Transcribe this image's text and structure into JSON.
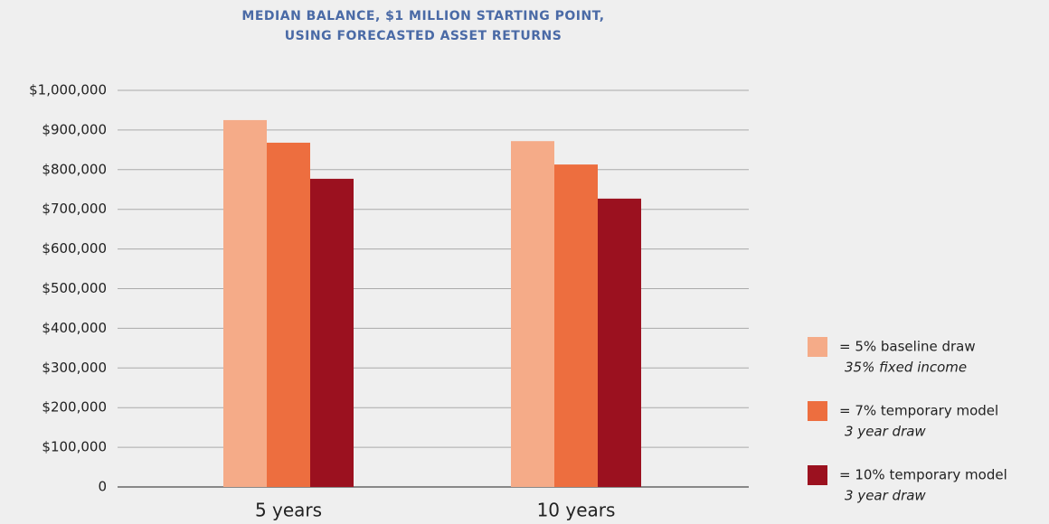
{
  "chart_data": {
    "type": "bar",
    "title": [
      "MEDIAN BALANCE, $1 MILLION STARTING POINT,",
      "USING FORECASTED ASSET RETURNS"
    ],
    "categories": [
      "5 years",
      "10 years"
    ],
    "series": [
      {
        "name": "= 5% baseline draw",
        "note": "35% fixed income",
        "color": "#f5ab88",
        "values": [
          925000,
          872000
        ]
      },
      {
        "name": "= 7% temporary model",
        "note": "3 year draw",
        "color": "#ed6e3f",
        "values": [
          868000,
          813000
        ]
      },
      {
        "name": "= 10% temporary model",
        "note": "3 year draw",
        "color": "#9b111f",
        "values": [
          777000,
          727000
        ]
      }
    ],
    "ylim": [
      0,
      1000000
    ],
    "yticks": [
      0,
      {
        "value": 100000,
        "label": "$100,000"
      },
      {
        "value": 200000,
        "label": "$200,000"
      },
      {
        "value": 300000,
        "label": "$300,000"
      },
      {
        "value": 400000,
        "label": "$400,000"
      },
      {
        "value": 500000,
        "label": "$500,000"
      },
      {
        "value": 600000,
        "label": "$600,000"
      },
      {
        "value": 700000,
        "label": "$700,000"
      },
      {
        "value": 800000,
        "label": "$800,000"
      },
      {
        "value": 900000,
        "label": "$900,000"
      },
      {
        "value": 1000000,
        "label": "$1,000,000"
      }
    ],
    "grid": true,
    "legend": "right"
  }
}
